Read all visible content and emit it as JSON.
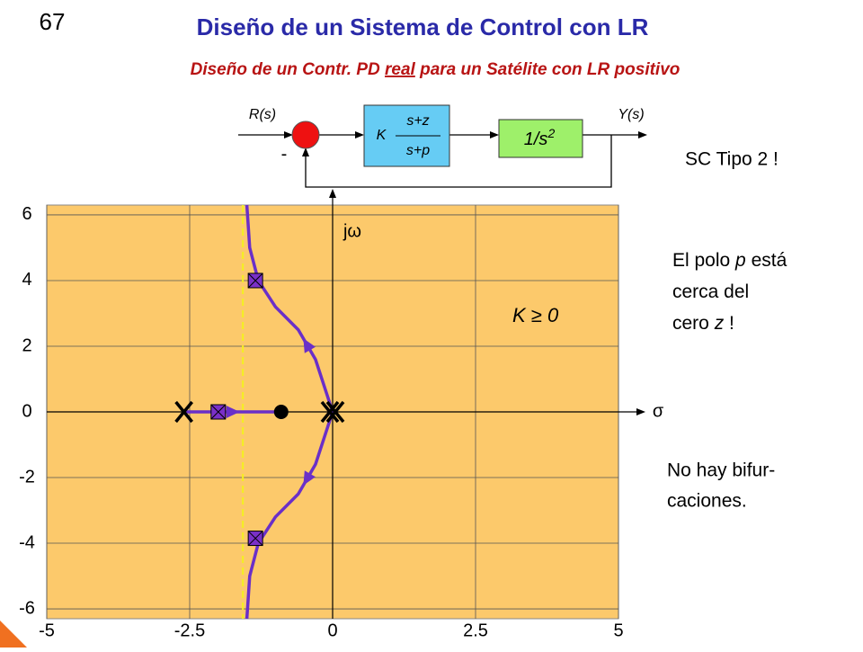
{
  "page_number": "67",
  "title": "Diseño de un Sistema de Control con LR",
  "subtitle": [
    "Diseño de un Contr. PD ",
    "real",
    " para un Satélite con LR positivo"
  ],
  "block_diagram": {
    "input": "R(s)",
    "output": "Y(s)",
    "feedback_sign": "-",
    "controller": {
      "gain": "K",
      "numerator": "s+z",
      "denominator": "s+p"
    },
    "plant": {
      "text": "1/s",
      "exponent": "2"
    }
  },
  "system_note": "SC Tipo 2 !",
  "pole_note": [
    [
      {
        "text": "El polo ",
        "italic": false
      },
      {
        "text": "p",
        "italic": true
      },
      {
        "text": " está",
        "italic": false
      }
    ],
    [
      {
        "text": "cerca del",
        "italic": false
      }
    ],
    [
      {
        "text": "cero ",
        "italic": false
      },
      {
        "text": "z",
        "italic": true
      },
      {
        "text": " !",
        "italic": false
      }
    ]
  ],
  "branch_note": [
    "No hay bifur-",
    "caciones."
  ],
  "chart_data": {
    "type": "root-locus",
    "x_axis_label": "σ",
    "y_axis_label": "jω",
    "gain_label": "K ≥ 0",
    "xlim": [
      -5,
      5
    ],
    "ylim": [
      -6.3,
      6.3
    ],
    "xticks": [
      -5,
      -2.5,
      0,
      2.5,
      5
    ],
    "yticks": [
      -6,
      -4,
      -2,
      0,
      2,
      4,
      6
    ],
    "grid": true,
    "background": "#fcc96b",
    "series": [
      {
        "color": "#6a2fc8",
        "x": [
          0,
          -0.3,
          -0.6,
          -1.0,
          -1.3,
          -1.45,
          -1.5
        ],
        "y": [
          0,
          1.6,
          2.5,
          3.2,
          4.0,
          5.0,
          6.3
        ]
      },
      {
        "color": "#6a2fc8",
        "x": [
          -2.6,
          -0.9
        ],
        "y": [
          0,
          0
        ]
      },
      {
        "color": "#6a2fc8",
        "x": [
          0,
          -0.3,
          -0.6,
          -1.0,
          -1.3,
          -1.45,
          -1.5
        ],
        "y": [
          0,
          -1.6,
          -2.5,
          -3.2,
          -4.0,
          -5.0,
          -6.3
        ]
      }
    ],
    "poles": [
      -2.6,
      0,
      0
    ],
    "zeros": [
      -0.9
    ],
    "closed_loop_points": {
      "x": [
        -2.0,
        -1.35,
        -1.35
      ],
      "y": [
        0,
        4.0,
        -3.85
      ]
    },
    "reference_line_x": -1.57
  }
}
